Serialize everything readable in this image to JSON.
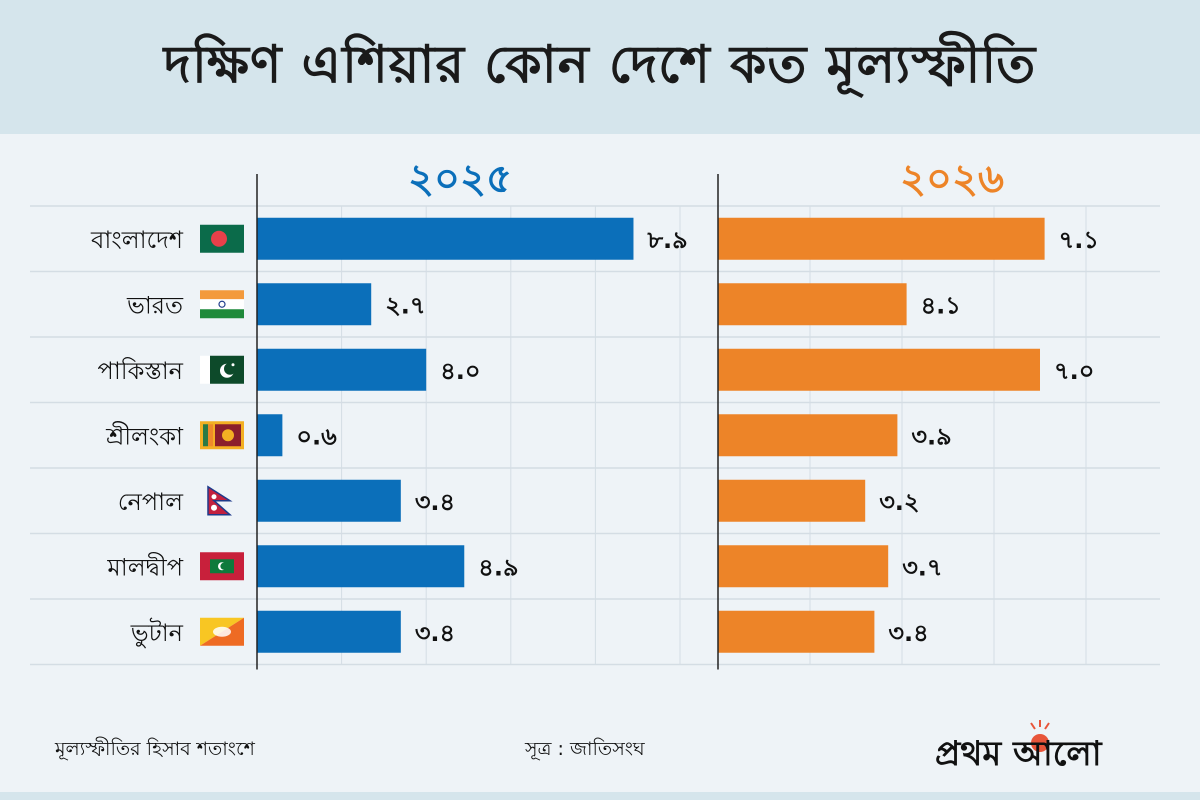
{
  "header": {
    "title": "দক্ষিণ এশিয়ার কোন দেশে কত মূল্যস্ফীতি"
  },
  "colors": {
    "series_2025": "#0b6fba",
    "series_2026": "#ed8428",
    "grid": "#d4dde4",
    "axis": "#222222",
    "title_band": "#d5e5ec",
    "background": "#eef3f7"
  },
  "footer": {
    "unit_note": "মূল্যস্ফীতির হিসাব শতাংশে",
    "source": "সূত্র : জাতিসংঘ",
    "logo_text": "প্রথম আলো"
  },
  "chart_data": {
    "type": "bar",
    "orientation": "horizontal",
    "title": "দক্ষিণ এশিয়ার কোন দেশে কত মূল্যস্ফীতি",
    "xlabel": "",
    "ylabel": "",
    "unit": "percent",
    "grid": true,
    "xlim": [
      0,
      10
    ],
    "categories": [
      "বাংলাদেশ",
      "ভারত",
      "পাকিস্তান",
      "শ্রীলংকা",
      "নেপাল",
      "মালদ্বীপ",
      "ভুটান"
    ],
    "flags": [
      "bangladesh-flag-icon",
      "india-flag-icon",
      "pakistan-flag-icon",
      "sri-lanka-flag-icon",
      "nepal-flag-icon",
      "maldives-flag-icon",
      "bhutan-flag-icon"
    ],
    "series": [
      {
        "name": "২০২৫",
        "year": 2025,
        "color": "#0b6fba",
        "values": [
          8.9,
          2.7,
          4.0,
          0.6,
          3.4,
          4.9,
          3.4
        ],
        "labels": [
          "৮.৯",
          "২.৭",
          "৪.০",
          "০.৬",
          "৩.৪",
          "৪.৯",
          "৩.৪"
        ]
      },
      {
        "name": "২০২৬",
        "year": 2026,
        "color": "#ed8428",
        "values": [
          7.1,
          4.1,
          7.0,
          3.9,
          3.2,
          3.7,
          3.4
        ],
        "labels": [
          "৭.১",
          "৪.১",
          "৭.০",
          "৩.৯",
          "৩.২",
          "৩.৭",
          "৩.৪"
        ]
      }
    ]
  }
}
